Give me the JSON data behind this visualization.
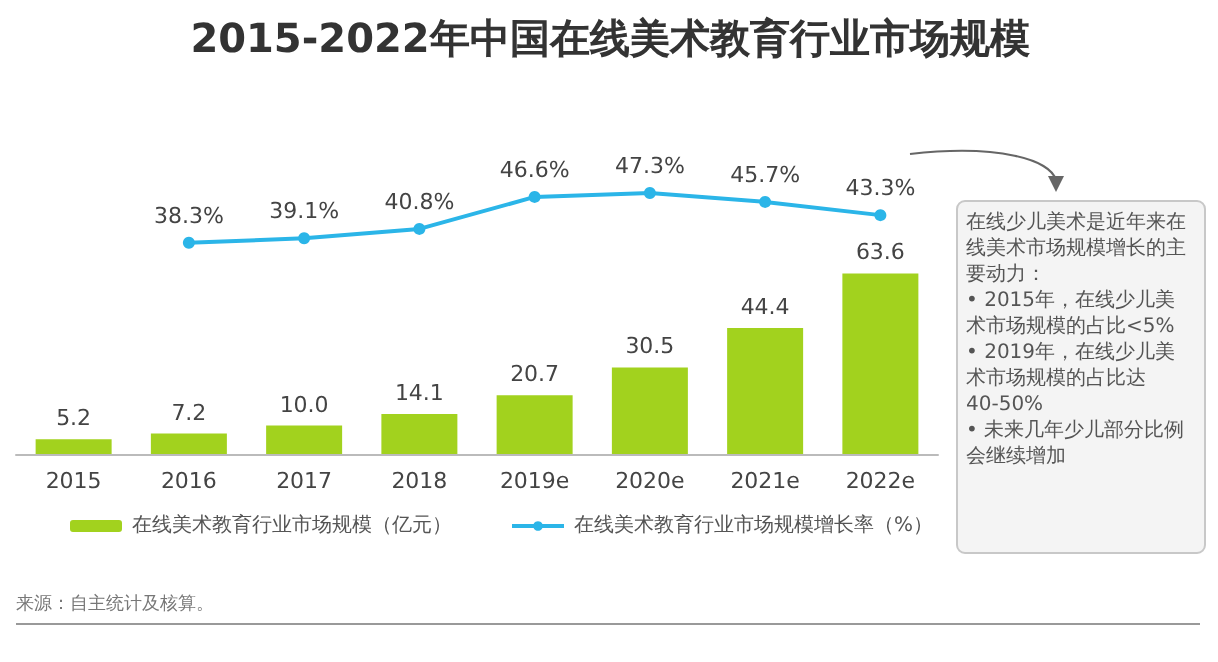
{
  "chart_data": [
    {
      "type": "line",
      "title": "2015-2022年中国在线美术教育行业市场规模",
      "categories": [
        null,
        null,
        null,
        null,
        null,
        null,
        null,
        null
      ],
      "series": [
        {
          "name": "在线美术教育行业市场规模增长率（%）",
          "color": "#2bb5e8",
          "values": [
            null,
            38.3,
            39.1,
            40.8,
            46.6,
            47.3,
            45.7,
            43.3
          ],
          "value_labels": [
            null,
            "38.3%",
            "39.1%",
            "40.8%",
            "46.6%",
            "47.3%",
            "45.7%",
            "43.3%"
          ]
        }
      ],
      "tick_labels": false,
      "marker": "circle",
      "legend": "bottom",
      "grid": false
    },
    {
      "type": "bar",
      "categories": [
        "2015",
        "2016",
        "2017",
        "2018",
        "2019e",
        "2020e",
        "2021e",
        "2022e"
      ],
      "series": [
        {
          "name": "在线美术教育行业市场规模（亿元）",
          "type": "bar",
          "color": "#a2d21e",
          "values": [
            5.2,
            7.2,
            10.0,
            14.1,
            20.7,
            30.5,
            44.4,
            63.6
          ],
          "value_labels": [
            "5.2",
            "7.2",
            "10.0",
            "14.1",
            "20.7",
            "30.5",
            "44.4",
            "63.6"
          ]
        }
      ],
      "tick_labels": "x",
      "legend": "bottom",
      "grid": false,
      "annotations": [
        "在线少儿美术是近年来在线美术市场规模增长的主要动力：",
        "• 2015年，在线少儿美术市场规模的占比<5%",
        "• 2019年，在线少儿美术市场规模的占比达40-50%",
        "• 未来几年少儿部分比例会继续增加",
        "来源：自主统计及核算。"
      ]
    }
  ]
}
